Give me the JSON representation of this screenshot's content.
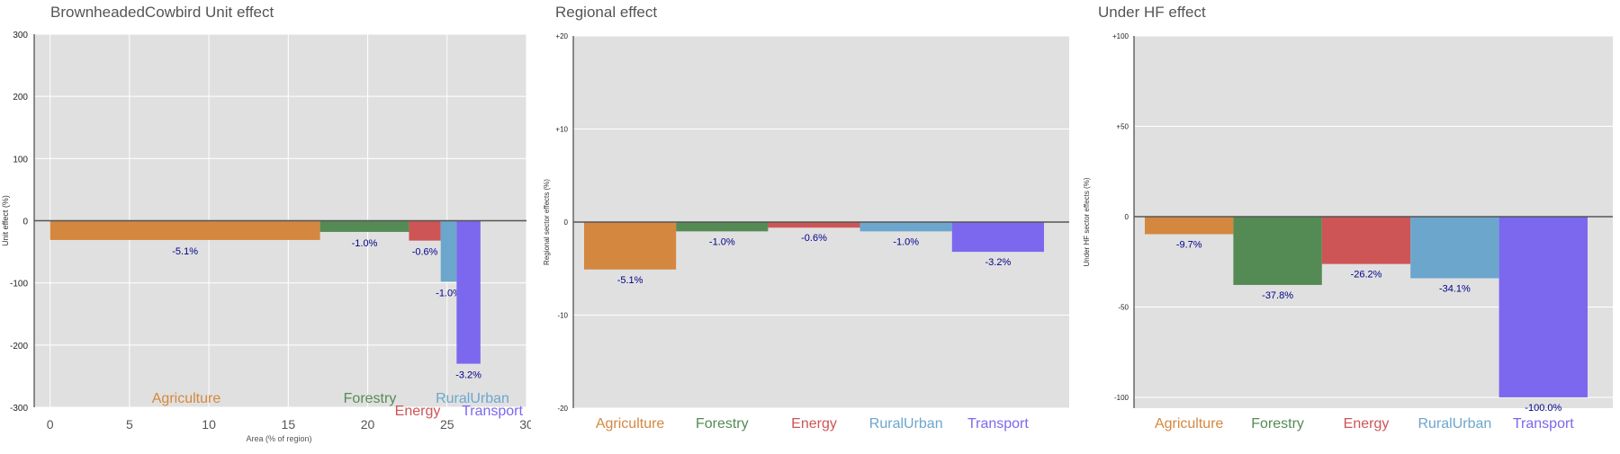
{
  "panels": [
    {
      "title": "BrownheadedCowbird Unit effect"
    },
    {
      "title": "Regional effect"
    },
    {
      "title": "Under HF effect"
    }
  ],
  "colors": {
    "Agriculture": "#D4883F",
    "Forestry": "#548B54",
    "Energy": "#CD5555",
    "RuralUrban": "#6CA6CD",
    "Transport": "#7B68EE",
    "panel_bg": "#E0E0E0",
    "label_text": "#00008B"
  },
  "chart_data": [
    {
      "type": "bar",
      "title": "BrownheadedCowbird Unit effect",
      "xlabel": "Area (% of region)",
      "ylabel": "Unit effect (%)",
      "xlim": [
        -1,
        30
      ],
      "ylim": [
        -300,
        300
      ],
      "xticks": [
        0,
        5,
        10,
        15,
        20,
        25,
        30
      ],
      "yticks": [
        300,
        200,
        100,
        0,
        -100,
        -200,
        -300
      ],
      "grid": true,
      "series": [
        {
          "name": "Agriculture",
          "x_start": 0,
          "x_end": 17,
          "value": -31,
          "label": "-5.1%"
        },
        {
          "name": "Forestry",
          "x_start": 17,
          "x_end": 22.6,
          "value": -18,
          "label": "-1.0%"
        },
        {
          "name": "Energy",
          "x_start": 22.6,
          "x_end": 24.6,
          "value": -32,
          "label": "-0.6%"
        },
        {
          "name": "RuralUrban",
          "x_start": 24.6,
          "x_end": 25.6,
          "value": -98,
          "label": "-1.0%"
        },
        {
          "name": "Transport",
          "x_start": 25.6,
          "x_end": 27.1,
          "value": -230,
          "label": "-3.2%"
        }
      ]
    },
    {
      "type": "bar",
      "title": "Regional effect",
      "ylabel": "Regional sector effects (%)",
      "ylim": [
        -20,
        20
      ],
      "yticks": [
        "+20",
        "+10",
        "0",
        "-10",
        "-20"
      ],
      "categories": [
        "Agriculture",
        "Forestry",
        "Energy",
        "RuralUrban",
        "Transport"
      ],
      "values": [
        -5.1,
        -1.0,
        -0.6,
        -1.0,
        -3.2
      ],
      "labels": [
        "-5.1%",
        "-1.0%",
        "-0.6%",
        "-1.0%",
        "-3.2%"
      ]
    },
    {
      "type": "bar",
      "title": "Under HF effect",
      "ylabel": "Under HF sector effects (%)",
      "ylim": [
        -106,
        100
      ],
      "yticks": [
        "+100",
        "+50",
        "0",
        "-50",
        "-100"
      ],
      "categories": [
        "Agriculture",
        "Forestry",
        "Energy",
        "RuralUrban",
        "Transport"
      ],
      "values": [
        -9.7,
        -37.8,
        -26.2,
        -34.1,
        -100.0
      ],
      "labels": [
        "-9.7%",
        "-37.8%",
        "-26.2%",
        "-34.1%",
        "-100.0%"
      ]
    }
  ]
}
